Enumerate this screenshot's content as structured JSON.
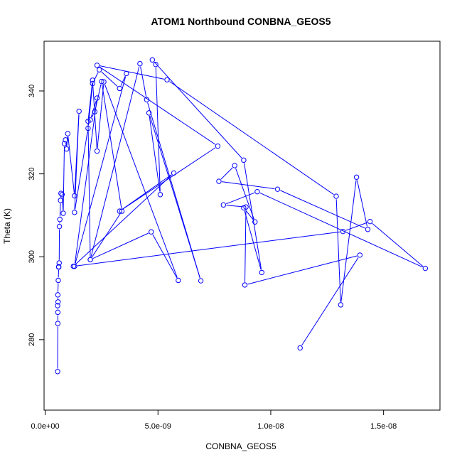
{
  "chart_data": {
    "type": "line",
    "title": "ATOM1 Northbound CONBNA_GEOS5",
    "xlabel": "CONBNA_GEOS5",
    "ylabel": "Theta (K)",
    "xlim": [
      -5e-11,
      1.75e-08
    ],
    "ylim": [
      263,
      352
    ],
    "x_ticks": [
      0,
      5e-09,
      1e-08,
      1.5e-08
    ],
    "x_tick_labels": [
      "0.0e+00",
      "5.0e-09",
      "1.0e-08",
      "1.5e-08"
    ],
    "y_ticks": [
      280,
      300,
      320,
      340
    ],
    "y_tick_labels": [
      "280",
      "300",
      "320",
      "340"
    ],
    "grid": false,
    "marker": "open-circle",
    "color": "#0000ff",
    "series": [
      {
        "x": [
          5.5e-10,
          5.6e-10,
          5.6e-10,
          5.5e-10,
          5.7e-10,
          5.6e-10,
          5.8e-10,
          6e-10,
          6e-10,
          6.2e-10,
          6.3e-10,
          6.5e-10,
          6.8e-10,
          7e-10,
          7.5e-10,
          8e-10,
          8.5e-10,
          9e-10,
          9.5e-10,
          1e-09,
          1.3e-09,
          1.5e-09,
          1.3e-09,
          1.9e-09,
          2.1e-09,
          2.4e-09,
          3.3e-09,
          3.6e-09,
          1.3e-09,
          2.3e-09,
          2e-09,
          2.2e-09,
          2.5e-09,
          3.4e-09,
          2e-09,
          1.9e-09,
          2.1e-09,
          2.3e-09,
          2.6e-09,
          5.9e-09,
          4.7e-09,
          2e-09,
          4.2e-09,
          4.5e-09,
          6.9e-09,
          4.6e-09,
          5.1e-09,
          4.9e-09,
          4.75e-09,
          8.8e-09,
          9.6e-09,
          8.8e-09,
          9.3e-09,
          8.4e-09,
          7.7e-09,
          1.03e-08,
          1.43e-08,
          1.38e-08,
          1.31e-08,
          1.29e-08,
          5.4e-09,
          2.3e-09,
          7.65e-09,
          3.3e-09,
          5.7e-09,
          1.25e-09,
          1.32e-08,
          1.44e-08,
          1.685e-08,
          9.4e-09,
          7.9e-09,
          8.9e-09,
          8.85e-09,
          1.395e-08,
          1.13e-08
        ],
        "y": [
          272.3,
          283.9,
          286.6,
          288.2,
          289.1,
          290.8,
          294.3,
          297.5,
          297.6,
          298.5,
          307.3,
          309.0,
          313.6,
          315.3,
          315.0,
          310.5,
          327.3,
          328.2,
          326.0,
          329.7,
          314.7,
          335.1,
          310.7,
          331.0,
          341.8,
          345.1,
          340.6,
          344.2,
          297.7,
          338.3,
          333.0,
          335.0,
          342.3,
          311.0,
          299.3,
          332.7,
          342.6,
          325.5,
          342.2,
          294.3,
          306.0,
          299.3,
          346.6,
          337.9,
          294.2,
          334.7,
          315.0,
          346.4,
          347.5,
          323.3,
          296.2,
          311.8,
          308.4,
          322.0,
          318.2,
          316.3,
          306.6,
          319.2,
          288.4,
          314.6,
          342.7,
          346.2,
          326.7,
          311.0,
          320.2,
          297.7,
          306.1,
          308.5,
          297.2,
          315.7,
          312.5,
          312.0,
          293.2,
          300.4,
          278.0
        ]
      }
    ]
  }
}
